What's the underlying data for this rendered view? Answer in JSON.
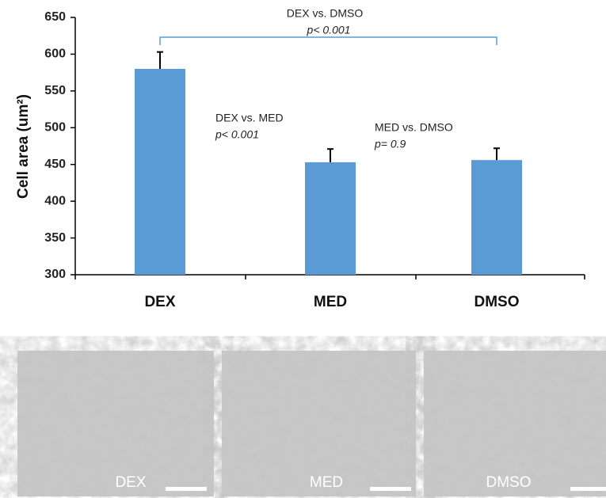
{
  "chart_data": {
    "type": "bar",
    "y_label": "Cell area (um²)",
    "categories": [
      "DEX",
      "MED",
      "DMSO"
    ],
    "values": [
      580,
      453,
      456
    ],
    "errors": [
      23,
      18,
      16
    ],
    "color": "#5b9bd5",
    "ylim": [
      300,
      650
    ],
    "yticks": [
      300,
      350,
      400,
      450,
      500,
      550,
      600,
      650
    ],
    "annotations": [
      {
        "label": "DEX vs. DMSO",
        "p": "p< 0.001"
      },
      {
        "label": "DEX vs. MED",
        "p": "p< 0.001"
      },
      {
        "label": "MED vs. DMSO",
        "p": "p= 0.9"
      }
    ]
  },
  "images": [
    {
      "label": "DEX"
    },
    {
      "label": "MED"
    },
    {
      "label": "DMSO"
    }
  ]
}
